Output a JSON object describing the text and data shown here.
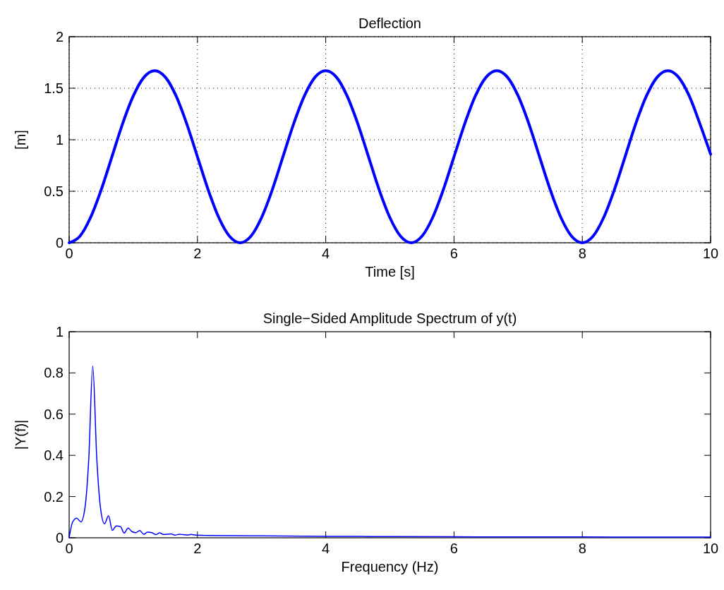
{
  "chart_data": [
    {
      "type": "line",
      "title": "Deflection",
      "xlabel": "Time [s]",
      "ylabel": "[m]",
      "xlim": [
        0,
        10
      ],
      "ylim": [
        0,
        2
      ],
      "xticks": [
        0,
        2,
        4,
        6,
        8,
        10
      ],
      "yticks": [
        0,
        0.5,
        1,
        1.5,
        2
      ],
      "grid": true,
      "line_style": "solid",
      "series": [
        {
          "color": "#0000ff",
          "x": [
            0,
            0.167,
            0.333,
            0.5,
            0.667,
            0.833,
            1,
            1.167,
            1.333,
            1.5,
            1.667,
            1.833,
            2,
            2.167,
            2.333,
            2.5,
            2.667,
            2.833,
            3,
            3.167,
            3.333,
            3.5,
            3.667,
            3.833,
            4,
            4.167,
            4.333,
            4.5,
            4.667,
            4.833,
            5,
            5.167,
            5.333,
            5.5,
            5.667,
            5.833,
            6,
            6.167,
            6.333,
            6.5,
            6.667,
            6.833,
            7,
            7.167,
            7.333,
            7.5,
            7.667,
            7.833,
            8,
            8.167,
            8.333,
            8.5,
            8.667,
            8.833,
            9,
            9.167,
            9.333,
            9.5,
            9.667,
            9.833,
            10
          ],
          "values": [
            0,
            0.063,
            0.245,
            0.515,
            0.835,
            1.155,
            1.425,
            1.607,
            1.67,
            1.607,
            1.425,
            1.155,
            0.835,
            0.515,
            0.245,
            0.063,
            0,
            0.063,
            0.245,
            0.515,
            0.835,
            1.155,
            1.425,
            1.607,
            1.67,
            1.607,
            1.425,
            1.155,
            0.835,
            0.515,
            0.245,
            0.063,
            0,
            0.063,
            0.245,
            0.515,
            0.835,
            1.155,
            1.425,
            1.607,
            1.67,
            1.607,
            1.425,
            1.155,
            0.835,
            0.515,
            0.245,
            0.063,
            0,
            0.063,
            0.245,
            0.515,
            0.835,
            1.155,
            1.425,
            1.607,
            1.67,
            1.607,
            1.425,
            1.155,
            0.86
          ]
        }
      ]
    },
    {
      "type": "line",
      "title": "Single−Sided Amplitude Spectrum of y(t)",
      "xlabel": "Frequency (Hz)",
      "ylabel": "|Y(f)|",
      "xlim": [
        0,
        10
      ],
      "ylim": [
        0,
        1
      ],
      "xticks": [
        0,
        2,
        4,
        6,
        8,
        10
      ],
      "yticks": [
        0,
        0.2,
        0.4,
        0.6,
        0.8,
        1
      ],
      "grid": false,
      "line_style": "solid",
      "series": [
        {
          "color": "#0000ff",
          "x": [
            0,
            0.055,
            0.118,
            0.184,
            0.246,
            0.305,
            0.368,
            0.43,
            0.489,
            0.551,
            0.614,
            0.673,
            0.735,
            0.798,
            0.857,
            0.919,
            0.98,
            1.04,
            1.1,
            1.165,
            1.22,
            1.29,
            1.35,
            1.41,
            1.47,
            1.53,
            1.59,
            1.65,
            1.72,
            1.78,
            1.84,
            1.9,
            1.97,
            2.5,
            3,
            4,
            5,
            6,
            7,
            8,
            9,
            10
          ],
          "values": [
            0,
            0.077,
            0.095,
            0.077,
            0.144,
            0.377,
            0.832,
            0.389,
            0.144,
            0.068,
            0.107,
            0.036,
            0.057,
            0.055,
            0.023,
            0.047,
            0.03,
            0.025,
            0.035,
            0.017,
            0.027,
            0.025,
            0.015,
            0.024,
            0.016,
            0.017,
            0.019,
            0.013,
            0.017,
            0.015,
            0.013,
            0.016,
            0.013,
            0.01,
            0.009,
            0.007,
            0.006,
            0.005,
            0.004,
            0.004,
            0.003,
            0.003
          ]
        }
      ]
    }
  ]
}
